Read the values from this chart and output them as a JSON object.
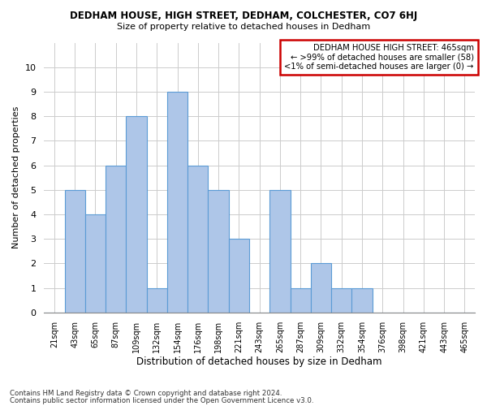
{
  "title": "DEDHAM HOUSE, HIGH STREET, DEDHAM, COLCHESTER, CO7 6HJ",
  "subtitle": "Size of property relative to detached houses in Dedham",
  "xlabel": "Distribution of detached houses by size in Dedham",
  "ylabel": "Number of detached properties",
  "categories": [
    "21sqm",
    "43sqm",
    "65sqm",
    "87sqm",
    "109sqm",
    "132sqm",
    "154sqm",
    "176sqm",
    "198sqm",
    "221sqm",
    "243sqm",
    "265sqm",
    "287sqm",
    "309sqm",
    "332sqm",
    "354sqm",
    "376sqm",
    "398sqm",
    "421sqm",
    "443sqm",
    "465sqm"
  ],
  "values": [
    0,
    5,
    4,
    6,
    8,
    1,
    9,
    6,
    5,
    3,
    0,
    5,
    1,
    2,
    1,
    1,
    0,
    0,
    0,
    0,
    0
  ],
  "bar_color": "#aec6e8",
  "bar_edge_color": "#5b9bd5",
  "ylim": [
    0,
    11
  ],
  "yticks": [
    0,
    1,
    2,
    3,
    4,
    5,
    6,
    7,
    8,
    9,
    10
  ],
  "annotation_title": "DEDHAM HOUSE HIGH STREET: 465sqm",
  "annotation_line1": "← >99% of detached houses are smaller (58)",
  "annotation_line2": "<1% of semi-detached houses are larger (0) →",
  "annotation_box_color": "#ffffff",
  "annotation_box_edge": "#cc0000",
  "footer1": "Contains HM Land Registry data © Crown copyright and database right 2024.",
  "footer2": "Contains public sector information licensed under the Open Government Licence v3.0.",
  "background_color": "#ffffff",
  "grid_color": "#cccccc"
}
